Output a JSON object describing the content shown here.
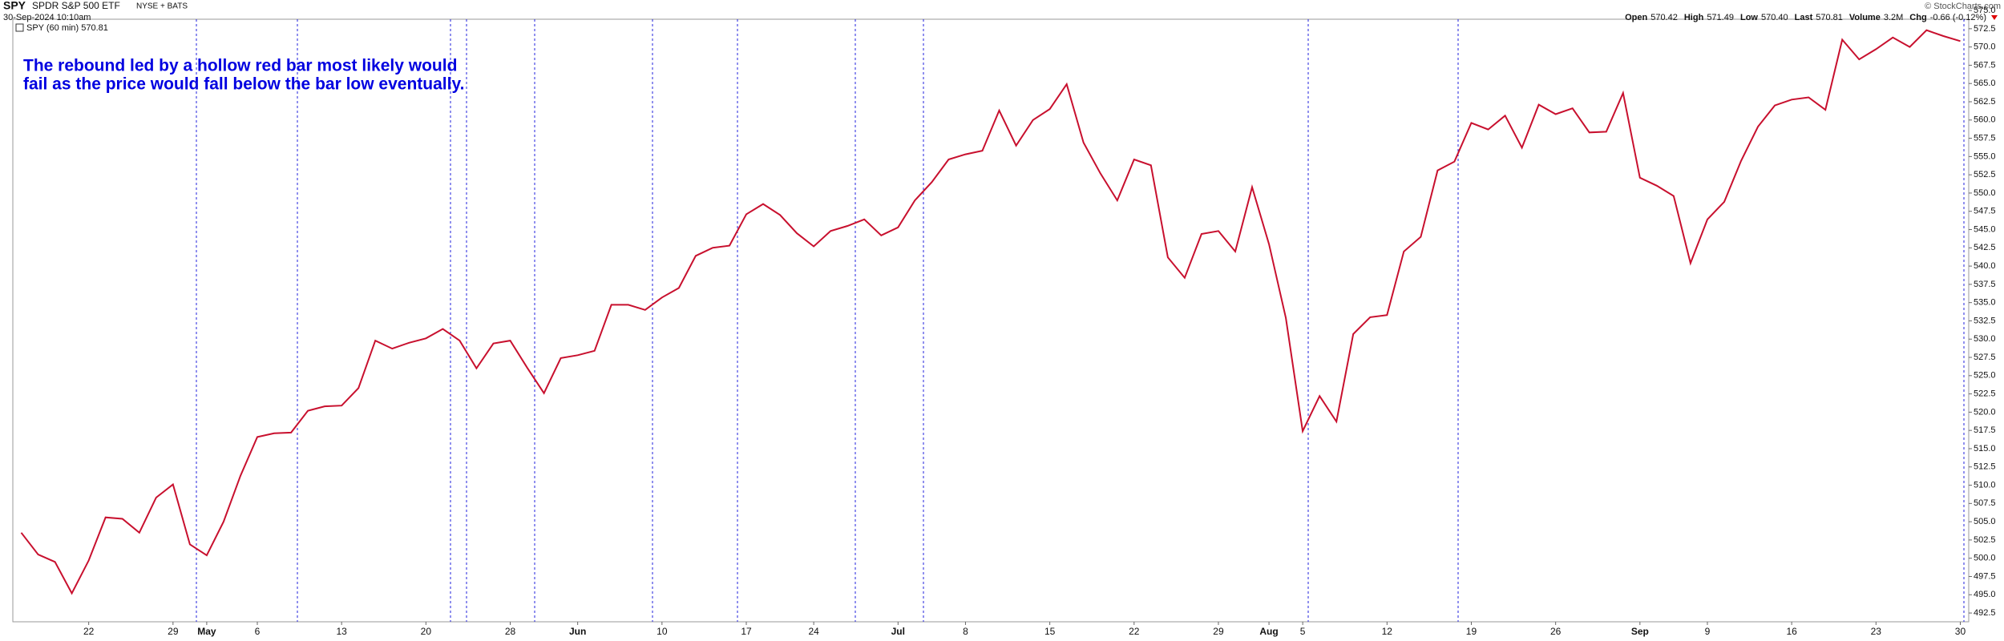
{
  "header": {
    "symbol": "SPY",
    "name": "SPDR S&P 500 ETF",
    "exchange": "NYSE + BATS",
    "date": "30-Sep-2024 10:10am",
    "legend": "SPY (60 min) 570.81",
    "quote": [
      {
        "label": "Open",
        "value": "570.42"
      },
      {
        "label": "High",
        "value": "571.49"
      },
      {
        "label": "Low",
        "value": "570.40"
      },
      {
        "label": "Last",
        "value": "570.81"
      },
      {
        "label": "Volume",
        "value": "3.2M"
      },
      {
        "label": "Chg",
        "value": "-0.66 (-0.12%)"
      }
    ],
    "copyright": "© StockCharts.com"
  },
  "chart_data": {
    "type": "line",
    "annotation": [
      "The rebound led by a hollow red bar most likely would",
      "fail as the price would fall below the bar low eventually."
    ],
    "categories": [
      null,
      null,
      null,
      null,
      "22",
      null,
      null,
      null,
      null,
      "29",
      null,
      "May",
      null,
      null,
      "6",
      null,
      null,
      null,
      null,
      "13",
      null,
      null,
      null,
      null,
      "20",
      null,
      null,
      null,
      null,
      "28",
      null,
      null,
      null,
      "Jun",
      null,
      null,
      null,
      null,
      "10",
      null,
      null,
      null,
      null,
      "17",
      null,
      null,
      null,
      "24",
      null,
      null,
      null,
      null,
      "Jul",
      null,
      null,
      null,
      "8",
      null,
      null,
      null,
      null,
      "15",
      null,
      null,
      null,
      null,
      "22",
      null,
      null,
      null,
      null,
      "29",
      null,
      null,
      "Aug",
      null,
      "5",
      null,
      null,
      null,
      null,
      "12",
      null,
      null,
      null,
      null,
      "19",
      null,
      null,
      null,
      null,
      "26",
      null,
      null,
      null,
      null,
      "Sep",
      null,
      null,
      null,
      "9",
      null,
      null,
      null,
      null,
      "16",
      null,
      null,
      null,
      null,
      "23",
      null,
      null,
      null,
      null,
      "30"
    ],
    "series": [
      {
        "name": "SPY",
        "color": "#c8102e",
        "values": [
          503.5,
          500.5,
          499.5,
          495.2,
          499.7,
          505.6,
          505.4,
          503.5,
          508.3,
          510.1,
          501.9,
          500.4,
          505.0,
          511.3,
          516.6,
          517.1,
          517.2,
          520.2,
          520.8,
          520.9,
          523.3,
          529.8,
          528.7,
          529.5,
          530.1,
          531.4,
          529.8,
          526.0,
          529.4,
          529.8,
          526.1,
          522.6,
          527.4,
          527.8,
          528.4,
          534.7,
          534.7,
          534.0,
          535.7,
          537.0,
          541.4,
          542.5,
          542.8,
          547.1,
          548.5,
          547.0,
          544.5,
          542.7,
          544.8,
          545.5,
          546.4,
          544.2,
          545.3,
          549.0,
          551.5,
          554.6,
          555.3,
          555.8,
          561.3,
          556.5,
          560.0,
          561.5,
          564.9,
          556.9,
          552.7,
          549.0,
          554.6,
          553.8,
          541.2,
          538.4,
          544.4,
          544.8,
          542.0,
          550.8,
          543.0,
          532.9,
          517.4,
          522.2,
          518.7,
          530.7,
          533.0,
          533.3,
          542.0,
          544.0,
          553.1,
          554.3,
          559.6,
          558.7,
          560.6,
          556.2,
          562.1,
          560.8,
          561.6,
          558.3,
          558.4,
          563.7,
          552.1,
          551.0,
          549.6,
          540.4,
          546.4,
          548.8,
          554.4,
          559.1,
          562.0,
          562.8,
          563.1,
          561.4,
          571.0,
          568.3,
          569.7,
          571.3,
          570.0,
          572.3,
          571.5,
          570.8
        ]
      }
    ],
    "ylim": [
      491.3,
      573.8
    ],
    "yticks": [
      492.5,
      {
        "value": 495,
        "label": "495.0"
      },
      497.5,
      {
        "value": 500,
        "label": "500.0"
      },
      502.5,
      {
        "value": 505,
        "label": "505.0"
      },
      507.5,
      {
        "value": 510,
        "label": "510.0"
      },
      512.5,
      {
        "value": 515,
        "label": "515.0"
      },
      517.5,
      {
        "value": 520,
        "label": "520.0"
      },
      522.5,
      {
        "value": 525,
        "label": "525.0"
      },
      527.5,
      {
        "value": 530,
        "label": "530.0"
      },
      532.5,
      {
        "value": 535,
        "label": "535.0"
      },
      537.5,
      {
        "value": 540,
        "label": "540.0"
      },
      542.5,
      {
        "value": 545,
        "label": "545.0"
      },
      547.5,
      {
        "value": 550,
        "label": "550.0"
      },
      552.5,
      {
        "value": 555,
        "label": "555.0"
      },
      557.5,
      {
        "value": 560,
        "label": "560.0"
      },
      562.5,
      {
        "value": 565,
        "label": "565.0"
      },
      567.5,
      {
        "value": 570,
        "label": "570.0"
      },
      572.5,
      {
        "value": 575,
        "label": "575.0"
      }
    ],
    "grid": false
  }
}
